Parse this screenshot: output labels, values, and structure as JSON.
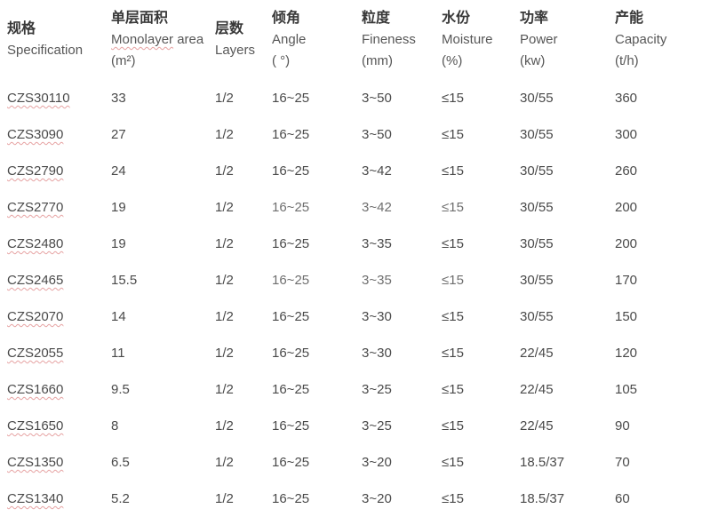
{
  "table": {
    "headers": [
      {
        "zh": "规格",
        "en": "Specification",
        "unit": ""
      },
      {
        "zh": "单层面积",
        "en": "Monolayer area",
        "unit": "(m²)",
        "spellcheck_word": "Monolayer"
      },
      {
        "zh": "层数",
        "en": "Layers",
        "unit": ""
      },
      {
        "zh": "倾角",
        "en": "Angle",
        "unit": "( °)"
      },
      {
        "zh": "粒度",
        "en": "Fineness",
        "unit": "(mm)"
      },
      {
        "zh": "水份",
        "en": "Moisture",
        "unit": "(%)"
      },
      {
        "zh": "功率",
        "en": "Power",
        "unit": "(kw)"
      },
      {
        "zh": "产能",
        "en": "Capacity",
        "unit": "(t/h)"
      }
    ],
    "rows": [
      [
        "CZS30110",
        "33",
        "1/2",
        "16~25",
        "3~50",
        "≤15",
        "30/55",
        "360"
      ],
      [
        "CZS3090",
        "27",
        "1/2",
        "16~25",
        "3~50",
        "≤15",
        "30/55",
        "300"
      ],
      [
        "CZS2790",
        "24",
        "1/2",
        "16~25",
        "3~42",
        "≤15",
        "30/55",
        "260"
      ],
      [
        "CZS2770",
        "19",
        "1/2",
        "16~25",
        "3~42",
        "≤15",
        "30/55",
        "200"
      ],
      [
        "CZS2480",
        "19",
        "1/2",
        "16~25",
        "3~35",
        "≤15",
        "30/55",
        "200"
      ],
      [
        "CZS2465",
        "15.5",
        "1/2",
        "16~25",
        "3~35",
        "≤15",
        "30/55",
        "170"
      ],
      [
        "CZS2070",
        "14",
        "1/2",
        "16~25",
        "3~30",
        "≤15",
        "30/55",
        "150"
      ],
      [
        "CZS2055",
        "11",
        "1/2",
        "16~25",
        "3~30",
        "≤15",
        "22/45",
        "120"
      ],
      [
        "CZS1660",
        "9.5",
        "1/2",
        "16~25",
        "3~25",
        "≤15",
        "22/45",
        "105"
      ],
      [
        "CZS1650",
        "8",
        "1/2",
        "16~25",
        "3~25",
        "≤15",
        "22/45",
        "90"
      ],
      [
        "CZS1350",
        "6.5",
        "1/2",
        "16~25",
        "3~20",
        "≤15",
        "18.5/37",
        "70"
      ],
      [
        "CZS1340",
        "5.2",
        "1/2",
        "16~25",
        "3~20",
        "≤15",
        "18.5/37",
        "60"
      ]
    ]
  },
  "colors": {
    "header_zh": "#383838",
    "header_en": "#575757",
    "cell_text": "#4a4a4a",
    "spellcheck_underline": "#e6a2a2",
    "background": "#ffffff"
  }
}
